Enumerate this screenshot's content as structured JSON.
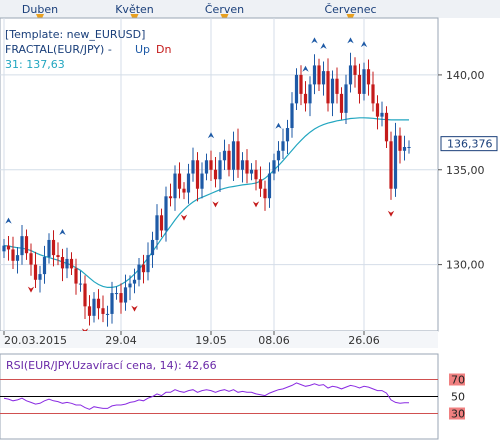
{
  "months": [
    "Duben",
    "Květen",
    "Červen",
    "Červenec"
  ],
  "legend": {
    "template": "[Template: new_EURUSD]",
    "fractal_label": "FRACTAL(EUR/JPY) -",
    "up_label": "Up",
    "dn_label": "Dn",
    "ma_label": "31: 137,63"
  },
  "price_axis": {
    "ticks": [
      {
        "value": 130,
        "label": "130,00"
      },
      {
        "value": 135,
        "label": "135,00"
      },
      {
        "value": 140,
        "label": "140,00"
      }
    ],
    "current_price": 136.376,
    "current_label": "136,376"
  },
  "date_labels": [
    "20.03.2015",
    "29.04",
    "19.05",
    "08.06",
    "26.06"
  ],
  "rsi": {
    "label": "RSI(EUR/JPY.Uzavírací cena, 14): 42,66",
    "levels": [
      {
        "value": 70,
        "label": "70"
      },
      {
        "value": 50,
        "label": "50"
      },
      {
        "value": 30,
        "label": "30"
      }
    ]
  },
  "colors": {
    "bull": "#1e5aa6",
    "bear": "#c41a1a",
    "ma": "#22a6c0",
    "rsi": "#8a2be2",
    "grid": "#d4dde8",
    "accent": "#e8a020"
  },
  "chart_data": {
    "type": "candlestick",
    "ylim": [
      126.5,
      143.0
    ],
    "close": [
      131.0,
      130.8,
      130.2,
      130.5,
      131.5,
      130.6,
      130.0,
      129.2,
      129.5,
      130.4,
      131.3,
      130.5,
      130.4,
      129.8,
      130.3,
      129.8,
      129.0,
      129.0,
      127.8,
      127.3,
      128.2,
      127.7,
      127.4,
      127.4,
      128.5,
      128.5,
      128.0,
      128.8,
      129.0,
      129.2,
      130.0,
      129.6,
      130.5,
      131.3,
      132.6,
      131.8,
      133.6,
      133.5,
      134.8,
      134.0,
      133.8,
      134.8,
      135.5,
      134.0,
      134.8,
      135.5,
      135.0,
      134.5,
      135.5,
      136.0,
      135.0,
      136.5,
      135.0,
      135.5,
      134.8,
      135.0,
      134.5,
      134.0,
      133.5,
      134.8,
      135.5,
      136.0,
      136.5,
      137.2,
      138.5,
      140.0,
      139.0,
      138.5,
      139.5,
      140.5,
      139.5,
      140.2,
      138.5,
      139.8,
      139.0,
      138.0,
      139.5,
      140.5,
      140.0,
      139.0,
      140.3,
      139.5,
      138.5,
      137.8,
      138.0,
      136.5,
      134.0,
      136.8,
      136.0,
      136.2,
      136.2
    ],
    "ma": [
      131.0,
      130.98,
      130.93,
      130.89,
      130.87,
      130.81,
      130.74,
      130.62,
      130.52,
      130.44,
      130.38,
      130.3,
      130.23,
      130.14,
      130.06,
      129.97,
      129.83,
      129.7,
      129.5,
      129.3,
      129.1,
      128.95,
      128.85,
      128.8,
      128.8,
      128.84,
      128.95,
      129.1,
      129.28,
      129.5,
      129.75,
      130.05,
      130.35,
      130.68,
      131.02,
      131.36,
      131.7,
      132.02,
      132.35,
      132.65,
      132.9,
      133.12,
      133.3,
      133.45,
      133.55,
      133.65,
      133.75,
      133.85,
      133.95,
      134.02,
      134.08,
      134.12,
      134.16,
      134.2,
      134.23,
      134.26,
      134.3,
      134.4,
      134.55,
      134.75,
      134.98,
      135.22,
      135.48,
      135.75,
      136.02,
      136.3,
      136.55,
      136.78,
      136.98,
      137.15,
      137.28,
      137.38,
      137.46,
      137.52,
      137.58,
      137.62,
      137.66,
      137.7,
      137.72,
      137.74,
      137.74,
      137.73,
      137.71,
      137.68,
      137.66,
      137.65,
      137.63,
      137.63,
      137.63,
      137.63,
      137.63
    ],
    "rsi": [
      48,
      47,
      45,
      46,
      48,
      45,
      43,
      41,
      42,
      45,
      47,
      45,
      44,
      42,
      43,
      42,
      40,
      40,
      37,
      35,
      38,
      37,
      36,
      36,
      39,
      40,
      40,
      41,
      43,
      44,
      46,
      45,
      48,
      50,
      53,
      51,
      55,
      55,
      58,
      56,
      55,
      57,
      58,
      55,
      57,
      58,
      57,
      55,
      57,
      58,
      56,
      58,
      55,
      56,
      55,
      55,
      53,
      52,
      51,
      54,
      56,
      58,
      59,
      61,
      63,
      66,
      64,
      62,
      63,
      65,
      63,
      64,
      60,
      62,
      61,
      59,
      61,
      63,
      62,
      60,
      62,
      61,
      59,
      57,
      57,
      54,
      46,
      43,
      42,
      42.66,
      42.66
    ],
    "up_fractals": [
      1,
      13,
      46,
      61,
      67,
      69,
      71,
      77,
      80
    ],
    "down_fractals": [
      6,
      18,
      29,
      40,
      47,
      56,
      86
    ],
    "date_label_indices": [
      0,
      26,
      46,
      60,
      80
    ],
    "month_start_indices": [
      8,
      29,
      49,
      77
    ]
  }
}
